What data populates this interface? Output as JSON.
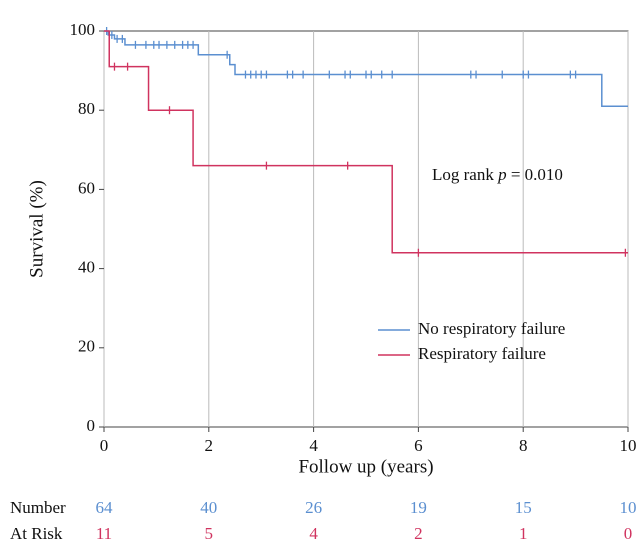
{
  "chart_data": {
    "type": "km",
    "xlabel": "Follow up (years)",
    "ylabel": "Survival (%)",
    "xlim": [
      0,
      10
    ],
    "xticks": [
      0,
      2,
      4,
      6,
      8,
      10
    ],
    "ylim": [
      0,
      100
    ],
    "yticks": [
      0,
      20,
      40,
      60,
      80,
      100
    ],
    "grid": "x",
    "legend": "lower right",
    "annotation": {
      "prefix": "Log rank ",
      "variable": "p",
      "suffix": " = 0.010"
    },
    "at_risk_label": [
      "Number",
      "At Risk"
    ],
    "series": [
      {
        "name": "No respiratory failure",
        "color": "#5b8fd0",
        "x": [
          0,
          0.08,
          0.2,
          0.4,
          1.8,
          2.4,
          2.5,
          9.5,
          10
        ],
        "values": [
          100,
          99,
          98,
          96.5,
          94,
          91.5,
          89,
          81,
          81
        ],
        "censor_x": [
          0.05,
          0.15,
          0.25,
          0.35,
          0.6,
          0.8,
          0.95,
          1.05,
          1.2,
          1.35,
          1.5,
          1.6,
          1.7,
          2.35,
          2.7,
          2.8,
          2.9,
          3.0,
          3.1,
          3.5,
          3.6,
          3.8,
          4.3,
          4.6,
          4.7,
          5.0,
          5.1,
          5.3,
          5.5,
          7.0,
          7.1,
          7.6,
          8.0,
          8.1,
          8.9,
          9.0
        ],
        "censor_y": [
          100,
          99,
          98,
          98,
          96.5,
          96.5,
          96.5,
          96.5,
          96.5,
          96.5,
          96.5,
          96.5,
          96.5,
          94,
          89,
          89,
          89,
          89,
          89,
          89,
          89,
          89,
          89,
          89,
          89,
          89,
          89,
          89,
          89,
          89,
          89,
          89,
          89,
          89,
          89,
          89
        ],
        "at_risk": [
          64,
          40,
          26,
          19,
          15,
          10
        ]
      },
      {
        "name": "Respiratory failure",
        "color": "#d0335f",
        "x": [
          0,
          0.1,
          0.85,
          1.7,
          5.5,
          10
        ],
        "values": [
          100,
          91,
          80,
          66,
          44,
          44
        ],
        "censor_x": [
          0.2,
          0.45,
          1.25,
          3.1,
          4.65,
          6.0,
          9.95
        ],
        "censor_y": [
          91,
          91,
          80,
          66,
          66,
          44,
          44
        ],
        "at_risk": [
          11,
          5,
          4,
          2,
          1,
          0
        ]
      }
    ]
  }
}
